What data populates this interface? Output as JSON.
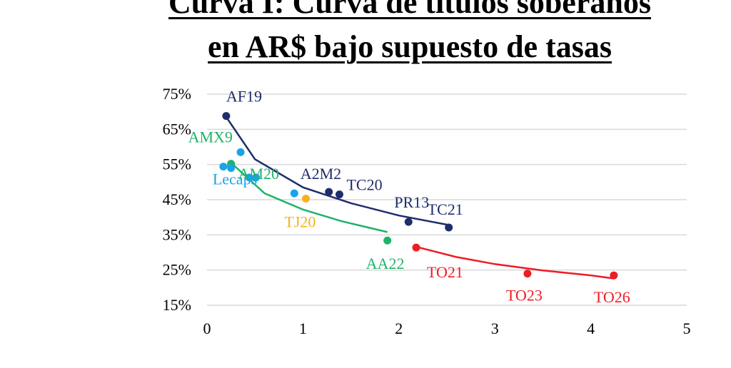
{
  "title_lines": [
    "Curva I: Curva de títulos soberanos",
    "en AR$ bajo supuesto de tasas"
  ],
  "footer_text": "",
  "chart_data": {
    "type": "scatter",
    "title": "Curva I: Curva de títulos soberanos en AR$ bajo supuesto de tasas",
    "xlabel": "",
    "ylabel": "",
    "xlim": [
      0,
      5
    ],
    "ylim": [
      15,
      75
    ],
    "x_ticks": [
      "0",
      "1",
      "2",
      "3",
      "4",
      "5"
    ],
    "y_ticks": [
      "15%",
      "25%",
      "35%",
      "45%",
      "55%",
      "65%",
      "75%"
    ],
    "grid": "horizontal",
    "series": [
      {
        "group": "navy",
        "color": "#1f2d6b",
        "points": [
          {
            "label": "AF19",
            "x": 0.2,
            "y": 68.8
          },
          {
            "label": "A2M2",
            "x": 1.27,
            "y": 47.2
          },
          {
            "label": "TC20",
            "x": 1.38,
            "y": 46.5
          },
          {
            "label": "PR13",
            "x": 2.1,
            "y": 38.7
          },
          {
            "label": "TC21",
            "x": 2.52,
            "y": 37.1
          }
        ],
        "trend": {
          "x": [
            0.2,
            0.5,
            1.0,
            1.5,
            2.0,
            2.52
          ],
          "y": [
            68.5,
            56.5,
            48.5,
            44.0,
            40.5,
            37.8
          ]
        }
      },
      {
        "group": "green",
        "color": "#1fb368",
        "points": [
          {
            "label": "AMX9",
            "x": 0.25,
            "y": 55.2
          },
          {
            "label": "AM20",
            "x": 0.25,
            "y": 54.5
          },
          {
            "label": "AA22",
            "x": 1.88,
            "y": 33.4
          }
        ],
        "trend": {
          "x": [
            0.25,
            0.6,
            1.0,
            1.4,
            1.88
          ],
          "y": [
            55.5,
            46.8,
            42.2,
            38.9,
            35.8
          ]
        }
      },
      {
        "group": "lightblue",
        "color": "#1aa3e8",
        "points": [
          {
            "label": "Lecaps",
            "x": 0.17,
            "y": 54.4
          },
          {
            "label": "",
            "x": 0.25,
            "y": 54.0
          },
          {
            "label": "",
            "x": 0.35,
            "y": 58.5
          },
          {
            "label": "",
            "x": 0.44,
            "y": 51.3
          },
          {
            "label": "",
            "x": 0.51,
            "y": 51.3
          },
          {
            "label": "",
            "x": 0.91,
            "y": 46.8
          }
        ]
      },
      {
        "group": "orange",
        "color": "#f5b21e",
        "points": [
          {
            "label": "TJ20",
            "x": 1.03,
            "y": 45.3
          }
        ]
      },
      {
        "group": "red",
        "color": "#ee1c25",
        "points": [
          {
            "label": "TO21",
            "x": 2.18,
            "y": 31.4
          },
          {
            "label": "TO23",
            "x": 3.34,
            "y": 24.0
          },
          {
            "label": "TO26",
            "x": 4.24,
            "y": 23.5
          }
        ],
        "trend": {
          "x": [
            2.18,
            2.6,
            3.0,
            3.5,
            4.0,
            4.24
          ],
          "y": [
            31.6,
            28.7,
            26.7,
            24.9,
            23.5,
            22.6
          ]
        }
      }
    ]
  }
}
